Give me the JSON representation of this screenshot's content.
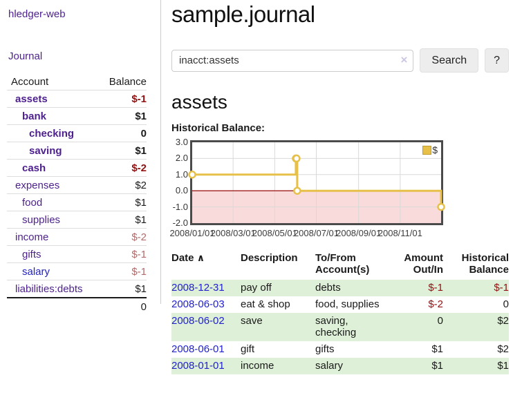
{
  "app": {
    "title": "hledger-web"
  },
  "sidebar": {
    "nav": {
      "journal": "Journal"
    },
    "accounts": {
      "headers": {
        "account": "Account",
        "balance": "Balance"
      },
      "rows": [
        {
          "name": "assets",
          "balance": "$-1"
        },
        {
          "name": "bank",
          "balance": "$1"
        },
        {
          "name": "checking",
          "balance": "0"
        },
        {
          "name": "saving",
          "balance": "$1"
        },
        {
          "name": "cash",
          "balance": "$-2"
        },
        {
          "name": "expenses",
          "balance": "$2"
        },
        {
          "name": "food",
          "balance": "$1"
        },
        {
          "name": "supplies",
          "balance": "$1"
        },
        {
          "name": "income",
          "balance": "$-2"
        },
        {
          "name": "gifts",
          "balance": "$-1"
        },
        {
          "name": "salary",
          "balance": "$-1"
        },
        {
          "name": "liabilities:debts",
          "balance": "$1"
        }
      ],
      "total": "0"
    }
  },
  "main": {
    "title": "sample.journal",
    "search": {
      "value": "inacct:assets",
      "clear_icon": "×",
      "button_label": "Search",
      "help_label": "?"
    },
    "account_heading": "assets",
    "chart": {
      "label": "Historical Balance:",
      "type": "line",
      "legend": "$",
      "ylim": [
        -2.0,
        3.0
      ],
      "yticks": [
        "3.0",
        "2.0",
        "1.0",
        "0.0",
        "-1.0",
        "-2.0"
      ],
      "x_range": [
        "2008/01/01",
        "2008/12/31"
      ],
      "xticks": [
        "2008/01/01",
        "2008/03/01",
        "2008/05/01",
        "2008/07/01",
        "2008/09/01",
        "2008/11/01"
      ],
      "points": [
        [
          "2008/01/01",
          1.0
        ],
        [
          "2008/06/01",
          2.0
        ],
        [
          "2008/06/02",
          2.0
        ],
        [
          "2008/06/03",
          0.0
        ],
        [
          "2008/12/31",
          -1.0
        ]
      ],
      "colors": {
        "line": "#e7c04a",
        "marker_fill": "#ffffff",
        "negative_fill": "#fadbdb",
        "zero_line": "#9d1c1c",
        "grid": "#d9d9d9",
        "legend_swatch": "#e7c04a"
      }
    },
    "register": {
      "headers": {
        "date": "Date",
        "sort_icon": "∧",
        "description": "Description",
        "tofrom1": "To/From",
        "tofrom2": "Account(s)",
        "amount1": "Amount",
        "amount2": "Out/In",
        "hist1": "Historical",
        "hist2": "Balance"
      },
      "rows": [
        {
          "date": "2008-12-31",
          "description": "pay off",
          "accounts": "debts",
          "amount": "$-1",
          "balance": "$-1"
        },
        {
          "date": "2008-06-03",
          "description": "eat & shop",
          "accounts": "food, supplies",
          "amount": "$-2",
          "balance": "0"
        },
        {
          "date": "2008-06-02",
          "description": "save",
          "accounts": "saving, checking",
          "amount": "0",
          "balance": "$2"
        },
        {
          "date": "2008-06-01",
          "description": "gift",
          "accounts": "gifts",
          "amount": "$1",
          "balance": "$2"
        },
        {
          "date": "2008-01-01",
          "description": "income",
          "accounts": "salary",
          "amount": "$1",
          "balance": "$1"
        }
      ]
    }
  }
}
